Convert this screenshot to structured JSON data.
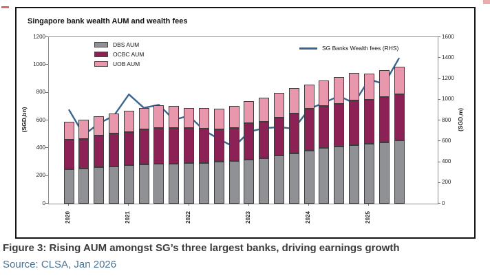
{
  "figure": {
    "chart_title": "Singapore bank wealth AUM and wealth fees",
    "caption": "Figure 3: Rising AUM amongst SG’s three largest banks, driving earnings growth",
    "source": "Source: CLSA, Jan 2026"
  },
  "colors": {
    "dbs_fill": "#909194",
    "ocbc_fill": "#8b2155",
    "uob_fill": "#e897ad",
    "fees_line": "#3a658f",
    "axis": "#8c8c8c",
    "source_text": "#4a7392",
    "corner_marks": "#d96a6a"
  },
  "chart_data": {
    "type": "bar",
    "subtype": "stacked-bars-with-line",
    "title": "Singapore bank wealth AUM and wealth fees",
    "categories": [
      "2020Q1",
      "2020Q2",
      "2020Q3",
      "2020Q4",
      "2021Q1",
      "2021Q2",
      "2021Q3",
      "2021Q4",
      "2022Q1",
      "2022Q2",
      "2022Q3",
      "2022Q4",
      "2023Q1",
      "2023Q2",
      "2023Q3",
      "2023Q4",
      "2024Q1",
      "2024Q2",
      "2024Q3",
      "2024Q4",
      "2025Q1",
      "2025Q2",
      "2025Q3"
    ],
    "x_ticks": [
      {
        "label": "2020",
        "index": 0
      },
      {
        "label": "2021",
        "index": 4
      },
      {
        "label": "2022",
        "index": 8
      },
      {
        "label": "2023",
        "index": 12
      },
      {
        "label": "2024",
        "index": 16
      },
      {
        "label": "2025",
        "index": 20
      }
    ],
    "series": [
      {
        "name": "DBS AUM",
        "color": "#909194",
        "axis": "left",
        "values": [
          250,
          255,
          263,
          270,
          276,
          283,
          287,
          290,
          293,
          295,
          303,
          308,
          317,
          326,
          348,
          362,
          380,
          400,
          410,
          424,
          433,
          442,
          455
        ]
      },
      {
        "name": "OCBC AUM",
        "color": "#8b2155",
        "axis": "left",
        "values": [
          210,
          213,
          227,
          238,
          242,
          252,
          258,
          258,
          252,
          245,
          232,
          237,
          261,
          264,
          274,
          288,
          303,
          305,
          308,
          321,
          317,
          328,
          335
        ]
      },
      {
        "name": "UOB AUM",
        "color": "#e897ad",
        "axis": "left",
        "values": [
          130,
          137,
          138,
          140,
          152,
          153,
          165,
          154,
          143,
          150,
          151,
          160,
          160,
          175,
          178,
          185,
          175,
          183,
          194,
          195,
          188,
          192,
          198
        ]
      }
    ],
    "line_series": {
      "name": "SG Banks Wealth fees (RHS)",
      "color": "#3a658f",
      "axis": "right",
      "values": [
        905,
        660,
        770,
        845,
        1050,
        920,
        950,
        805,
        845,
        705,
        620,
        545,
        690,
        725,
        735,
        720,
        910,
        970,
        1035,
        965,
        1195,
        1150,
        1400
      ]
    },
    "left_axis": {
      "label": "(SGD,bn)",
      "min": 0,
      "max": 1200,
      "step": 200
    },
    "right_axis": {
      "label": "(SGD,m)",
      "min": 0,
      "max": 1600,
      "step": 200
    },
    "grid": false,
    "legend_bars_position": "top-left-inside",
    "legend_line_position": "top-right-inside"
  }
}
